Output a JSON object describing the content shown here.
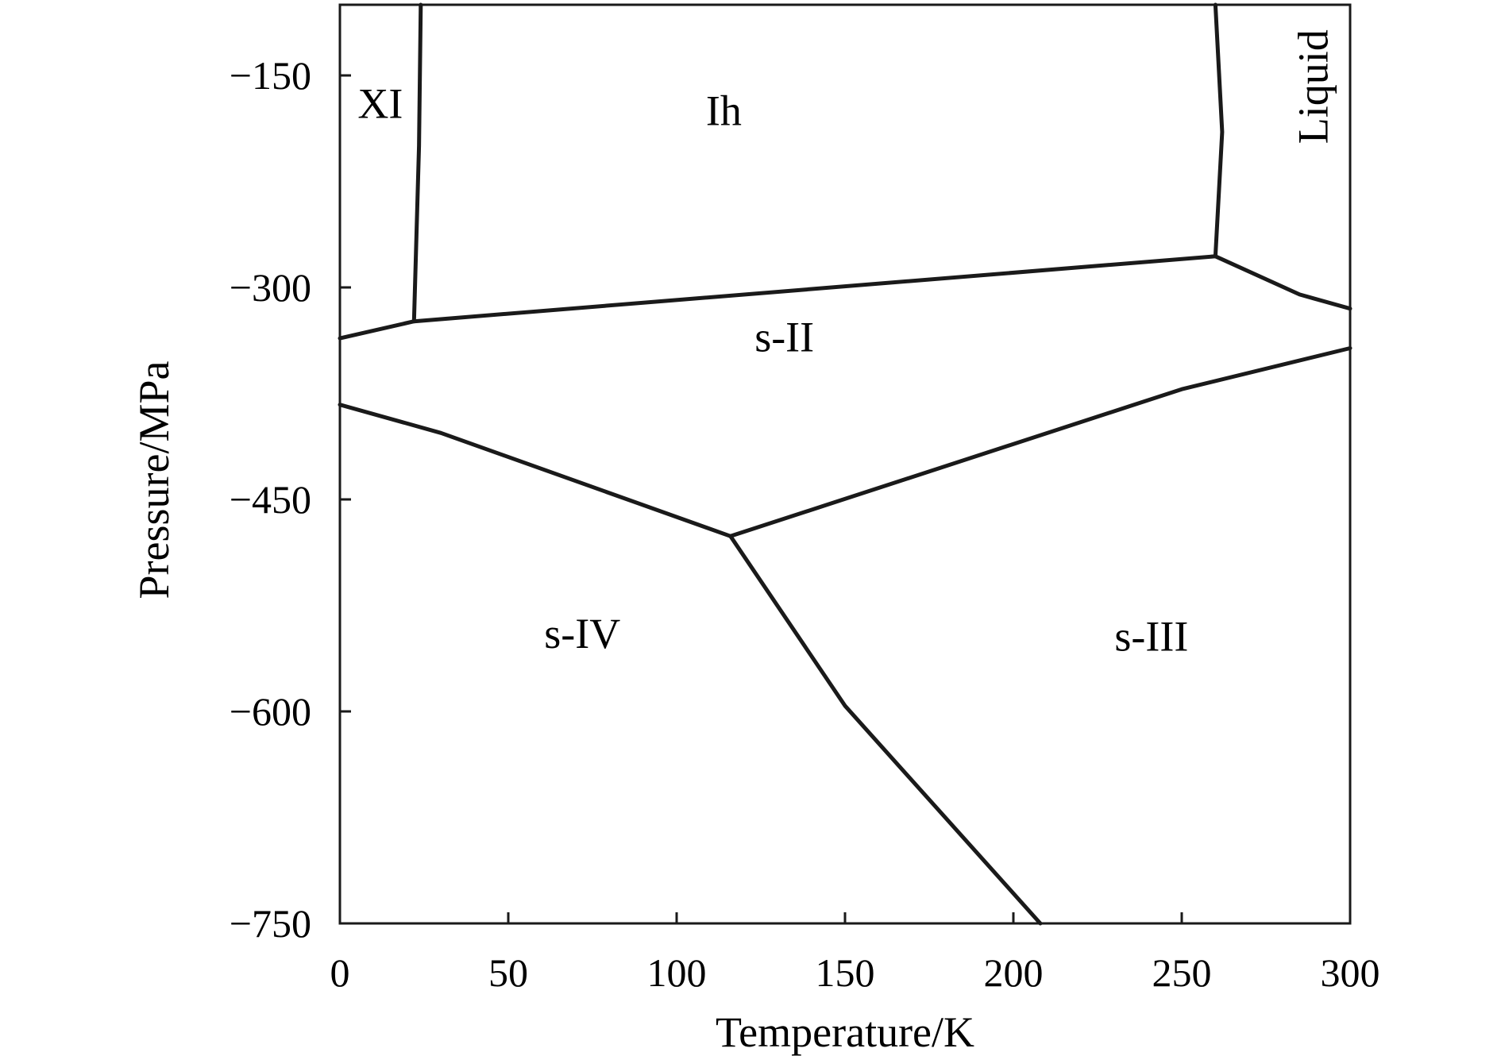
{
  "chart_data": {
    "type": "line",
    "title": "",
    "xlabel": "Temperature/K",
    "ylabel": "Pressure/MPa",
    "xlim": [
      0,
      300
    ],
    "ylim": [
      -750,
      -100
    ],
    "xticks": [
      0,
      50,
      100,
      150,
      200,
      250,
      300
    ],
    "xtick_labels": [
      "0",
      "50",
      "100",
      "150",
      "200",
      "250",
      "300"
    ],
    "yticks": [
      -150,
      -300,
      -450,
      -600,
      -750
    ],
    "ytick_labels": [
      "−150",
      "−300",
      "−450",
      "−600",
      "−750"
    ],
    "grid": false,
    "legend": "none",
    "regions": [
      {
        "label": "XI",
        "x": 12,
        "y": -170
      },
      {
        "label": "Ih",
        "x": 114,
        "y": -175
      },
      {
        "label": "Liquid",
        "x": 289,
        "y": -158,
        "rotated": true
      },
      {
        "label": "s-II",
        "x": 132,
        "y": -335
      },
      {
        "label": "s-IV",
        "x": 72,
        "y": -545
      },
      {
        "label": "s-III",
        "x": 241,
        "y": -547
      }
    ],
    "series": [
      {
        "values": [
          [
            24,
            -100
          ],
          [
            23.5,
            -200
          ],
          [
            22,
            -324
          ]
        ]
      },
      {
        "values": [
          [
            0,
            -336
          ],
          [
            22,
            -324
          ],
          [
            260,
            -278
          ]
        ]
      },
      {
        "values": [
          [
            260,
            -100
          ],
          [
            262,
            -190
          ],
          [
            260,
            -278
          ]
        ]
      },
      {
        "values": [
          [
            260,
            -278
          ],
          [
            285,
            -305
          ],
          [
            300,
            -315
          ]
        ]
      },
      {
        "values": [
          [
            0,
            -383
          ],
          [
            30,
            -403
          ],
          [
            116,
            -476
          ]
        ]
      },
      {
        "values": [
          [
            116,
            -476
          ],
          [
            250,
            -372
          ],
          [
            300,
            -343
          ]
        ]
      },
      {
        "values": [
          [
            116,
            -476
          ],
          [
            150,
            -596
          ],
          [
            208,
            -750
          ]
        ]
      }
    ]
  }
}
